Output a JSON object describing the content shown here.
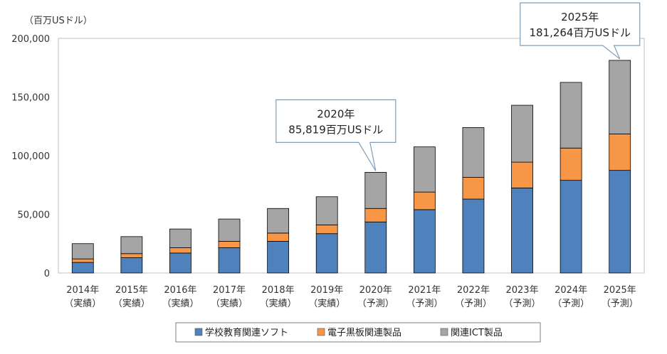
{
  "chart_data": {
    "type": "bar",
    "stacked": true,
    "y_unit_label": "（百万USドル）",
    "ylim": [
      0,
      200000
    ],
    "yticks": [
      0,
      50000,
      100000,
      150000,
      200000
    ],
    "ytick_labels": [
      "0",
      "50,000",
      "100,000",
      "150,000",
      "200,000"
    ],
    "grid": false,
    "categories": [
      {
        "year": "2014年",
        "status": "（実績）"
      },
      {
        "year": "2015年",
        "status": "（実績）"
      },
      {
        "year": "2016年",
        "status": "（実績）"
      },
      {
        "year": "2017年",
        "status": "（実績）"
      },
      {
        "year": "2018年",
        "status": "（実績）"
      },
      {
        "year": "2019年",
        "status": "（実績）"
      },
      {
        "year": "2020年",
        "status": "（予測）"
      },
      {
        "year": "2021年",
        "status": "（予測）"
      },
      {
        "year": "2022年",
        "status": "（予測）"
      },
      {
        "year": "2023年",
        "status": "（予測）"
      },
      {
        "year": "2024年",
        "status": "（予測）"
      },
      {
        "year": "2025年",
        "status": "（予測）"
      }
    ],
    "series": [
      {
        "name": "学校教育関連ソフト",
        "color": "#4f81bd",
        "values": [
          9000,
          13000,
          17000,
          21500,
          27000,
          33500,
          43500,
          54000,
          63000,
          72500,
          79000,
          87500
        ]
      },
      {
        "name": "電子黒板関連製品",
        "color": "#f79646",
        "values": [
          3000,
          3500,
          4500,
          5500,
          7000,
          7500,
          11500,
          15000,
          18500,
          22000,
          27500,
          31000
        ]
      },
      {
        "name": "関連ICT製品",
        "color": "#a5a5a5",
        "values": [
          13000,
          14500,
          16000,
          19000,
          21000,
          24000,
          30819,
          38500,
          42500,
          48500,
          56000,
          62764
        ]
      }
    ],
    "legend_position": "bottom",
    "annotations": [
      {
        "category_index": 6,
        "line1": "2020年",
        "line2": "85,819百万USドル"
      },
      {
        "category_index": 11,
        "line1": "2025年",
        "line2": "181,264百万USドル"
      }
    ]
  }
}
